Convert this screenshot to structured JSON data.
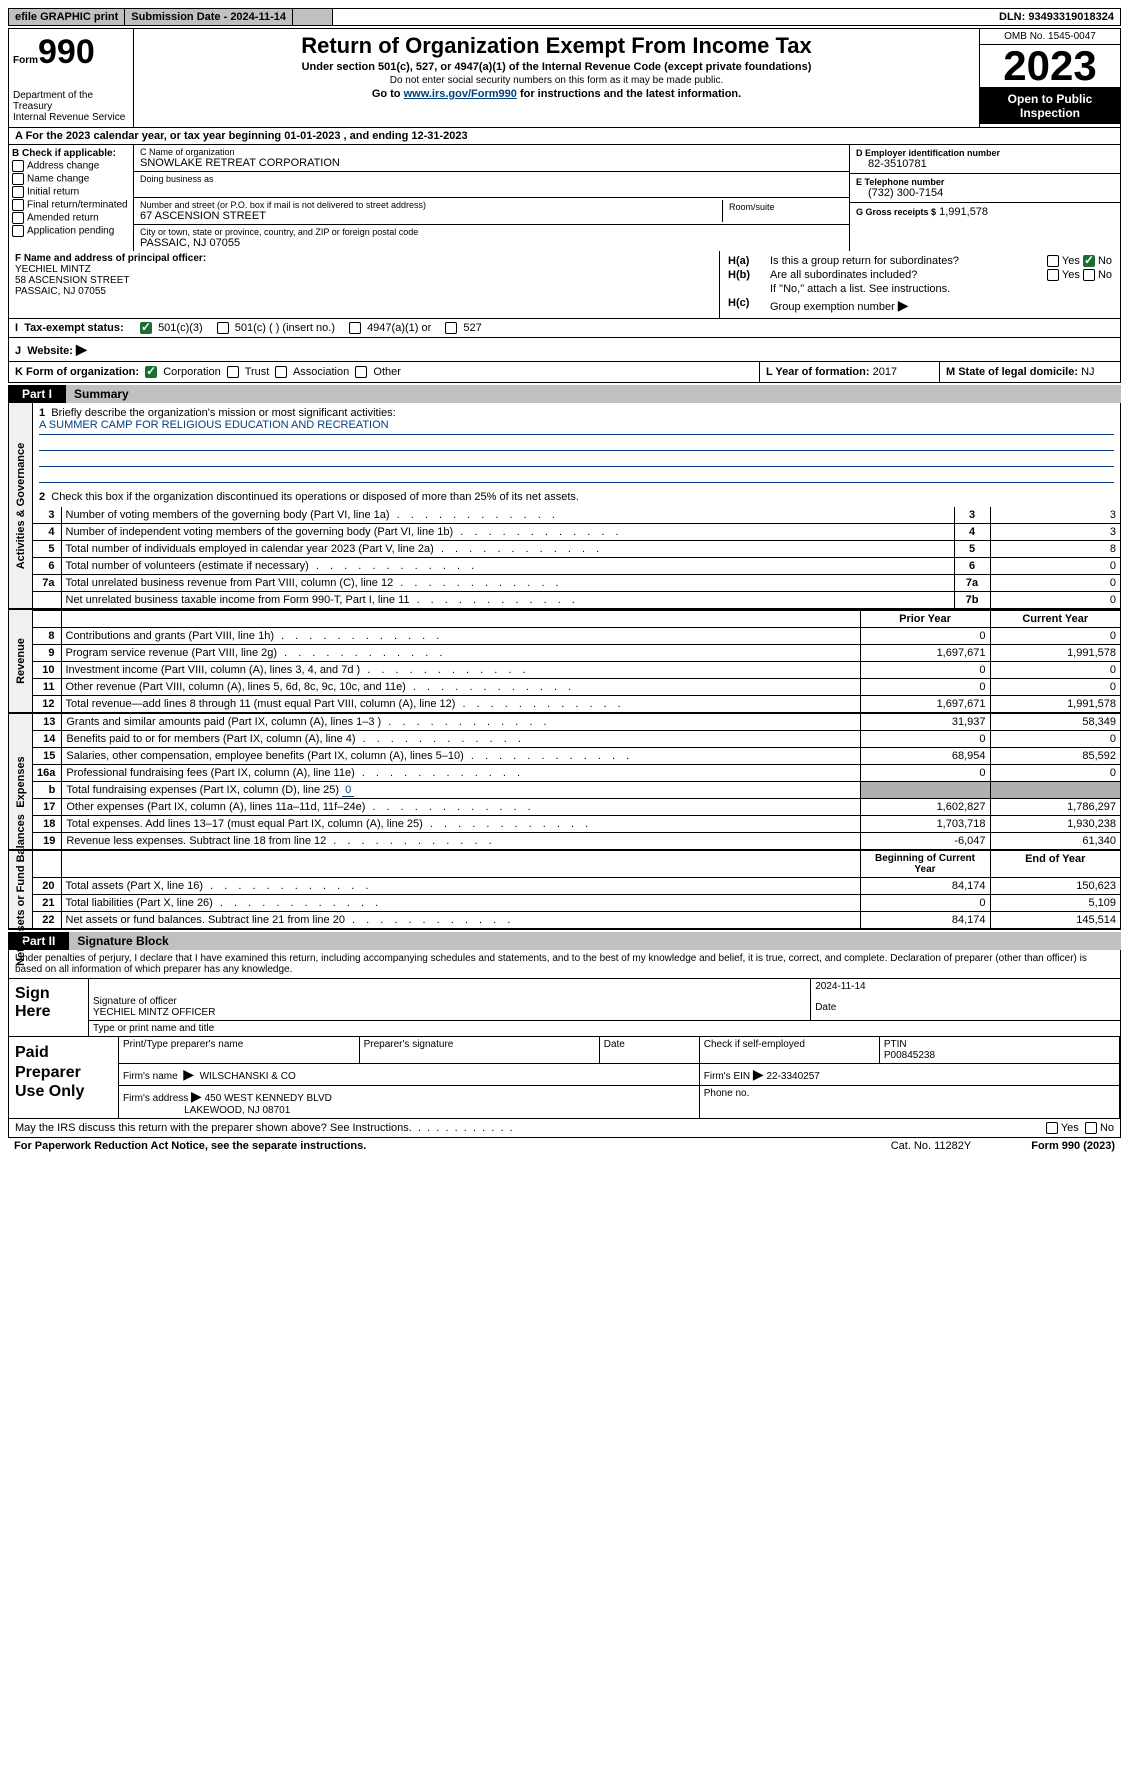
{
  "topbar": {
    "efile": "efile GRAPHIC print",
    "submission": "Submission Date - 2024-11-14",
    "dln": "DLN: 93493319018324"
  },
  "header": {
    "form_label": "Form",
    "form_number": "990",
    "dept": "Department of the Treasury",
    "irs": "Internal Revenue Service",
    "title": "Return of Organization Exempt From Income Tax",
    "subtitle": "Under section 501(c), 527, or 4947(a)(1) of the Internal Revenue Code (except private foundations)",
    "note1": "Do not enter social security numbers on this form as it may be made public.",
    "goto_pre": "Go to ",
    "goto_link": "www.irs.gov/Form990",
    "goto_post": " for instructions and the latest information.",
    "omb": "OMB No. 1545-0047",
    "year": "2023",
    "open": "Open to Public Inspection"
  },
  "sectionA": "A For the 2023 calendar year, or tax year beginning 01-01-2023   , and ending 12-31-2023",
  "colB": {
    "label": "B Check if applicable:",
    "items": [
      "Address change",
      "Name change",
      "Initial return",
      "Final return/terminated",
      "Amended return",
      "Application pending"
    ]
  },
  "colC": {
    "name_label": "C Name of organization",
    "name": "SNOWLAKE RETREAT CORPORATION",
    "dba_label": "Doing business as",
    "dba": "",
    "street_label": "Number and street (or P.O. box if mail is not delivered to street address)",
    "street": "67 ASCENSION STREET",
    "room_label": "Room/suite",
    "room": "",
    "city_label": "City or town, state or province, country, and ZIP or foreign postal code",
    "city": "PASSAIC, NJ  07055"
  },
  "colD": {
    "label": "D Employer identification number",
    "value": "82-3510781"
  },
  "colE": {
    "label": "E Telephone number",
    "value": "(732) 300-7154"
  },
  "colG": {
    "label": "G Gross receipts $",
    "value": "1,991,578"
  },
  "colF": {
    "label": "F  Name and address of principal officer:",
    "name": "YECHIEL MINTZ",
    "street": "58 ASCENSION STREET",
    "city": "PASSAIC, NJ  07055"
  },
  "colH": {
    "ha": "Is this a group return for subordinates?",
    "hb": "Are all subordinates included?",
    "hb_note": "If \"No,\" attach a list. See instructions.",
    "hc": "Group exemption number",
    "yes": "Yes",
    "no": "No",
    "ha_label": "H(a)",
    "hb_label": "H(b)",
    "hc_label": "H(c)"
  },
  "rowI": {
    "label": "I",
    "text": "Tax-exempt status:",
    "opt1": "501(c)(3)",
    "opt2": "501(c) (  ) (insert no.)",
    "opt3": "4947(a)(1) or",
    "opt4": "527"
  },
  "rowJ": {
    "label": "J",
    "text": "Website:",
    "arrow": "▶"
  },
  "rowK": {
    "label": "K Form of organization:",
    "opt1": "Corporation",
    "opt2": "Trust",
    "opt3": "Association",
    "opt4": "Other"
  },
  "rowL": {
    "label": "L Year of formation:",
    "value": "2017"
  },
  "rowM": {
    "label": "M State of legal domicile:",
    "value": "NJ"
  },
  "part1": {
    "num": "Part I",
    "title": "Summary"
  },
  "governance": {
    "label": "Activities & Governance",
    "line1_label": "Briefly describe the organization's mission or most significant activities:",
    "line1_value": "A SUMMER CAMP FOR RELIGIOUS EDUCATION AND RECREATION",
    "line2": "Check this box      if the organization discontinued its operations or disposed of more than 25% of its net assets.",
    "rows": [
      {
        "n": "3",
        "desc": "Number of voting members of the governing body (Part VI, line 1a)",
        "box": "3",
        "val": "3"
      },
      {
        "n": "4",
        "desc": "Number of independent voting members of the governing body (Part VI, line 1b)",
        "box": "4",
        "val": "3"
      },
      {
        "n": "5",
        "desc": "Total number of individuals employed in calendar year 2023 (Part V, line 2a)",
        "box": "5",
        "val": "8"
      },
      {
        "n": "6",
        "desc": "Total number of volunteers (estimate if necessary)",
        "box": "6",
        "val": "0"
      },
      {
        "n": "7a",
        "desc": "Total unrelated business revenue from Part VIII, column (C), line 12",
        "box": "7a",
        "val": "0"
      },
      {
        "n": "",
        "desc": "Net unrelated business taxable income from Form 990-T, Part I, line 11",
        "box": "7b",
        "val": "0"
      }
    ]
  },
  "revenue": {
    "label": "Revenue",
    "head_prior": "Prior Year",
    "head_curr": "Current Year",
    "rows": [
      {
        "n": "8",
        "desc": "Contributions and grants (Part VIII, line 1h)",
        "p": "0",
        "c": "0"
      },
      {
        "n": "9",
        "desc": "Program service revenue (Part VIII, line 2g)",
        "p": "1,697,671",
        "c": "1,991,578"
      },
      {
        "n": "10",
        "desc": "Investment income (Part VIII, column (A), lines 3, 4, and 7d )",
        "p": "0",
        "c": "0"
      },
      {
        "n": "11",
        "desc": "Other revenue (Part VIII, column (A), lines 5, 6d, 8c, 9c, 10c, and 11e)",
        "p": "0",
        "c": "0"
      },
      {
        "n": "12",
        "desc": "Total revenue—add lines 8 through 11 (must equal Part VIII, column (A), line 12)",
        "p": "1,697,671",
        "c": "1,991,578"
      }
    ]
  },
  "expenses": {
    "label": "Expenses",
    "rows": [
      {
        "n": "13",
        "desc": "Grants and similar amounts paid (Part IX, column (A), lines 1–3 )",
        "p": "31,937",
        "c": "58,349"
      },
      {
        "n": "14",
        "desc": "Benefits paid to or for members (Part IX, column (A), line 4)",
        "p": "0",
        "c": "0"
      },
      {
        "n": "15",
        "desc": "Salaries, other compensation, employee benefits (Part IX, column (A), lines 5–10)",
        "p": "68,954",
        "c": "85,592"
      },
      {
        "n": "16a",
        "desc": "Professional fundraising fees (Part IX, column (A), line 11e)",
        "p": "0",
        "c": "0"
      }
    ],
    "row_b": {
      "n": "b",
      "desc": "Total fundraising expenses (Part IX, column (D), line 25)",
      "val": "0"
    },
    "rows2": [
      {
        "n": "17",
        "desc": "Other expenses (Part IX, column (A), lines 11a–11d, 11f–24e)",
        "p": "1,602,827",
        "c": "1,786,297"
      },
      {
        "n": "18",
        "desc": "Total expenses. Add lines 13–17 (must equal Part IX, column (A), line 25)",
        "p": "1,703,718",
        "c": "1,930,238"
      },
      {
        "n": "19",
        "desc": "Revenue less expenses. Subtract line 18 from line 12",
        "p": "-6,047",
        "c": "61,340"
      }
    ]
  },
  "netassets": {
    "label": "Net Assets or Fund Balances",
    "head_begin": "Beginning of Current Year",
    "head_end": "End of Year",
    "rows": [
      {
        "n": "20",
        "desc": "Total assets (Part X, line 16)",
        "p": "84,174",
        "c": "150,623"
      },
      {
        "n": "21",
        "desc": "Total liabilities (Part X, line 26)",
        "p": "0",
        "c": "5,109"
      },
      {
        "n": "22",
        "desc": "Net assets or fund balances. Subtract line 21 from line 20",
        "p": "84,174",
        "c": "145,514"
      }
    ]
  },
  "part2": {
    "num": "Part II",
    "title": "Signature Block"
  },
  "sig_text": "Under penalties of perjury, I declare that I have examined this return, including accompanying schedules and statements, and to the best of my knowledge and belief, it is true, correct, and complete. Declaration of preparer (other than officer) is based on all information of which preparer has any knowledge.",
  "sign": {
    "label": "Sign Here",
    "sig_officer_label": "Signature of officer",
    "officer": "YECHIEL MINTZ  OFFICER",
    "type_label": "Type or print name and title",
    "date_label": "Date",
    "date": "2024-11-14"
  },
  "prep": {
    "label": "Paid Preparer Use Only",
    "name_label": "Print/Type preparer's name",
    "sig_label": "Preparer's signature",
    "date_label": "Date",
    "self_emp": "Check       if self-employed",
    "ptin_label": "PTIN",
    "ptin": "P00845238",
    "firm_name_label": "Firm's name",
    "firm_name": "WILSCHANSKI & CO",
    "firm_ein_label": "Firm's EIN",
    "firm_ein": "22-3340257",
    "firm_addr_label": "Firm's address",
    "firm_addr1": "450 WEST KENNEDY BLVD",
    "firm_addr2": "LAKEWOOD, NJ  08701",
    "phone_label": "Phone no."
  },
  "footer": {
    "discuss": "May the IRS discuss this return with the preparer shown above? See Instructions.",
    "yes": "Yes",
    "no": "No",
    "paperwork": "For Paperwork Reduction Act Notice, see the separate instructions.",
    "cat": "Cat. No. 11282Y",
    "form": "Form 990 (2023)"
  }
}
